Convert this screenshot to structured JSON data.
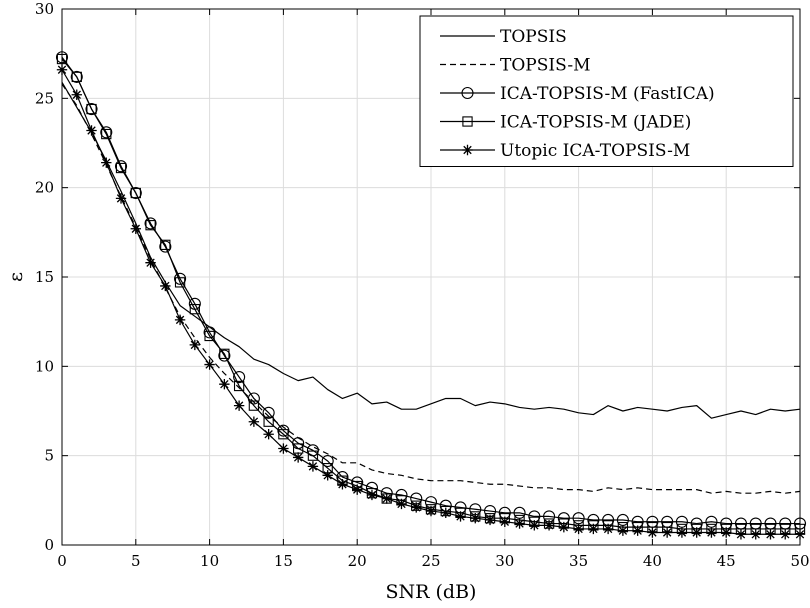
{
  "chart_data": {
    "type": "line",
    "title": "",
    "xlabel": "SNR (dB)",
    "ylabel": "ε",
    "xlim": [
      0,
      50
    ],
    "ylim": [
      0,
      30
    ],
    "xticks": [
      0,
      5,
      10,
      15,
      20,
      25,
      30,
      35,
      40,
      45,
      50
    ],
    "yticks": [
      0,
      5,
      10,
      15,
      20,
      25,
      30
    ],
    "grid": true,
    "legend_position": "top-right",
    "x": [
      0,
      1,
      2,
      3,
      4,
      5,
      6,
      7,
      8,
      9,
      10,
      11,
      12,
      13,
      14,
      15,
      16,
      17,
      18,
      19,
      20,
      21,
      22,
      23,
      24,
      25,
      26,
      27,
      28,
      29,
      30,
      31,
      32,
      33,
      34,
      35,
      36,
      37,
      38,
      39,
      40,
      41,
      42,
      43,
      44,
      45,
      46,
      47,
      48,
      49,
      50
    ],
    "series": [
      {
        "name": "TOPSIS",
        "style": "solid",
        "marker": "none",
        "values": [
          25.9,
          24.5,
          23.1,
          21.5,
          19.8,
          18.0,
          16.1,
          14.7,
          13.4,
          12.8,
          12.2,
          11.6,
          11.1,
          10.4,
          10.1,
          9.6,
          9.2,
          9.4,
          8.7,
          8.2,
          8.5,
          7.9,
          8.0,
          7.6,
          7.6,
          7.9,
          8.2,
          8.2,
          7.8,
          8.0,
          7.9,
          7.7,
          7.6,
          7.7,
          7.6,
          7.4,
          7.3,
          7.8,
          7.5,
          7.7,
          7.6,
          7.5,
          7.7,
          7.8,
          7.1,
          7.3,
          7.5,
          7.3,
          7.6,
          7.5,
          7.6
        ]
      },
      {
        "name": "TOPSIS-M",
        "style": "dashed",
        "marker": "none",
        "values": [
          25.8,
          24.6,
          23.0,
          21.3,
          19.5,
          17.8,
          16.0,
          14.4,
          12.8,
          11.6,
          10.5,
          9.6,
          8.8,
          8.0,
          7.2,
          6.6,
          6.0,
          5.5,
          5.1,
          4.6,
          4.6,
          4.2,
          4.0,
          3.9,
          3.7,
          3.6,
          3.6,
          3.6,
          3.5,
          3.4,
          3.4,
          3.3,
          3.2,
          3.2,
          3.1,
          3.1,
          3.0,
          3.2,
          3.1,
          3.2,
          3.1,
          3.1,
          3.1,
          3.1,
          2.9,
          3.0,
          2.9,
          2.9,
          3.0,
          2.9,
          3.0
        ]
      },
      {
        "name": "ICA-TOPSIS-M (FastICA)",
        "style": "solid",
        "marker": "circle",
        "values": [
          27.3,
          26.2,
          24.4,
          23.1,
          21.2,
          19.7,
          18.0,
          16.7,
          14.9,
          13.5,
          11.9,
          10.6,
          9.4,
          8.2,
          7.4,
          6.4,
          5.7,
          5.3,
          4.7,
          3.8,
          3.5,
          3.2,
          2.9,
          2.8,
          2.6,
          2.4,
          2.2,
          2.1,
          2.0,
          1.9,
          1.8,
          1.8,
          1.6,
          1.6,
          1.5,
          1.5,
          1.4,
          1.4,
          1.4,
          1.3,
          1.3,
          1.3,
          1.3,
          1.2,
          1.3,
          1.2,
          1.2,
          1.2,
          1.2,
          1.2,
          1.2
        ]
      },
      {
        "name": "ICA-TOPSIS-M (JADE)",
        "style": "solid",
        "marker": "square",
        "values": [
          27.2,
          26.2,
          24.4,
          23.0,
          21.1,
          19.7,
          17.9,
          16.8,
          14.7,
          13.2,
          11.7,
          10.7,
          8.9,
          7.8,
          6.9,
          6.2,
          5.4,
          5.0,
          4.3,
          3.6,
          3.3,
          2.9,
          2.6,
          2.5,
          2.2,
          2.0,
          1.9,
          1.8,
          1.6,
          1.5,
          1.5,
          1.4,
          1.3,
          1.2,
          1.2,
          1.1,
          1.1,
          1.1,
          1.0,
          1.0,
          1.0,
          1.0,
          0.9,
          0.9,
          0.9,
          0.9,
          0.9,
          0.9,
          0.9,
          0.9,
          0.9
        ]
      },
      {
        "name": "Utopic ICA-TOPSIS-M",
        "style": "solid",
        "marker": "asterisk",
        "values": [
          26.6,
          25.2,
          23.2,
          21.4,
          19.4,
          17.7,
          15.8,
          14.5,
          12.6,
          11.2,
          10.1,
          9.0,
          7.8,
          6.9,
          6.2,
          5.4,
          4.9,
          4.4,
          3.9,
          3.4,
          3.1,
          2.8,
          2.6,
          2.3,
          2.1,
          1.9,
          1.8,
          1.6,
          1.5,
          1.4,
          1.3,
          1.2,
          1.1,
          1.1,
          1.0,
          0.9,
          0.9,
          0.9,
          0.8,
          0.8,
          0.7,
          0.7,
          0.7,
          0.7,
          0.7,
          0.7,
          0.6,
          0.6,
          0.6,
          0.6,
          0.6
        ]
      }
    ]
  }
}
